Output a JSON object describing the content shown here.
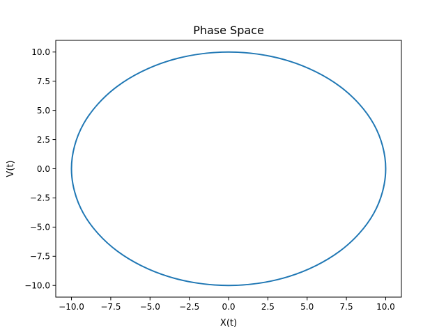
{
  "chart_data": {
    "type": "line",
    "title": "Phase Space",
    "xlabel": "X(t)",
    "ylabel": "V(t)",
    "xlim": [
      -11.0,
      11.0
    ],
    "ylim": [
      -11.0,
      11.0
    ],
    "xticks": [
      -10.0,
      -7.5,
      -5.0,
      -2.5,
      0.0,
      2.5,
      5.0,
      7.5,
      10.0
    ],
    "xtick_labels": [
      "−10.0",
      "−7.5",
      "−5.0",
      "−2.5",
      "0.0",
      "2.5",
      "5.0",
      "7.5",
      "10.0"
    ],
    "yticks": [
      -10.0,
      -7.5,
      -5.0,
      -2.5,
      0.0,
      2.5,
      5.0,
      7.5,
      10.0
    ],
    "ytick_labels": [
      "−10.0",
      "−7.5",
      "−5.0",
      "−2.5",
      "0.0",
      "2.5",
      "5.0",
      "7.5",
      "10.0"
    ],
    "grid": false,
    "series": [
      {
        "color": "#1f77b4",
        "x": [
          10.0,
          9.239,
          7.071,
          3.827,
          0.0,
          -3.827,
          -7.071,
          -9.239,
          -10.0,
          -9.239,
          -7.071,
          -3.827,
          0.0,
          3.827,
          7.071,
          9.239,
          10.0
        ],
        "y": [
          0.0,
          3.827,
          7.071,
          9.239,
          10.0,
          9.239,
          7.071,
          3.827,
          0.0,
          -3.827,
          -7.071,
          -9.239,
          -10.0,
          -9.239,
          -7.071,
          -3.827,
          0.0
        ]
      }
    ]
  }
}
